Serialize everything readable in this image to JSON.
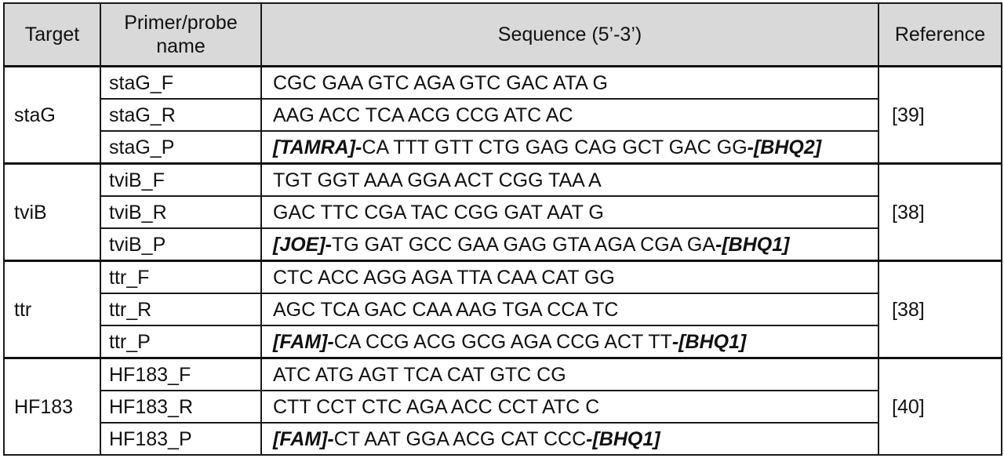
{
  "header": {
    "target": "Target",
    "name_line1": "Primer/probe",
    "name_line2": "name",
    "sequence": "Sequence (5’-3’)",
    "reference": "Reference"
  },
  "groups": [
    {
      "target": "staG",
      "reference": "[39]",
      "rows": [
        {
          "name": "staG_F",
          "seq": "CGC GAA GTC AGA GTC GAC ATA G"
        },
        {
          "name": "staG_R",
          "seq": "AAG ACC TCA ACG CCG ATC AC"
        },
        {
          "name": "staG_P",
          "tag_start": "[TAMRA]-",
          "seq": "CA TTT GTT CTG GAG CAG GCT GAC GG",
          "tag_end": "-[BHQ2]"
        }
      ]
    },
    {
      "target": "tviB",
      "reference": "[38]",
      "rows": [
        {
          "name": "tviB_F",
          "seq": "TGT GGT AAA GGA ACT CGG TAA A"
        },
        {
          "name": "tviB_R",
          "seq": "GAC TTC CGA TAC CGG GAT AAT G"
        },
        {
          "name": "tviB_P",
          "tag_start": "[JOE]-",
          "seq": "TG GAT GCC GAA GAG GTA AGA CGA GA",
          "tag_end": "-[BHQ1]"
        }
      ]
    },
    {
      "target": "ttr",
      "reference": "[38]",
      "rows": [
        {
          "name": "ttr_F",
          "seq": "CTC ACC AGG AGA TTA CAA CAT GG"
        },
        {
          "name": "ttr_R",
          "seq": "AGC TCA GAC CAA AAG TGA CCA TC"
        },
        {
          "name": "ttr_P",
          "tag_start": "[FAM]-",
          "seq": "CA CCG ACG GCG AGA CCG ACT TT",
          "tag_end": "-[BHQ1]"
        }
      ]
    },
    {
      "target": "HF183",
      "reference": "[40]",
      "rows": [
        {
          "name": "HF183_F",
          "seq": "ATC ATG AGT TCA CAT GTC CG"
        },
        {
          "name": "HF183_R",
          "seq": "CTT CCT CTC AGA ACC CCT ATC C"
        },
        {
          "name": "HF183_P",
          "tag_start": "[FAM]-",
          "seq": "CT AAT GGA ACG CAT CCC",
          "tag_end": "-[BHQ1]"
        }
      ]
    }
  ]
}
